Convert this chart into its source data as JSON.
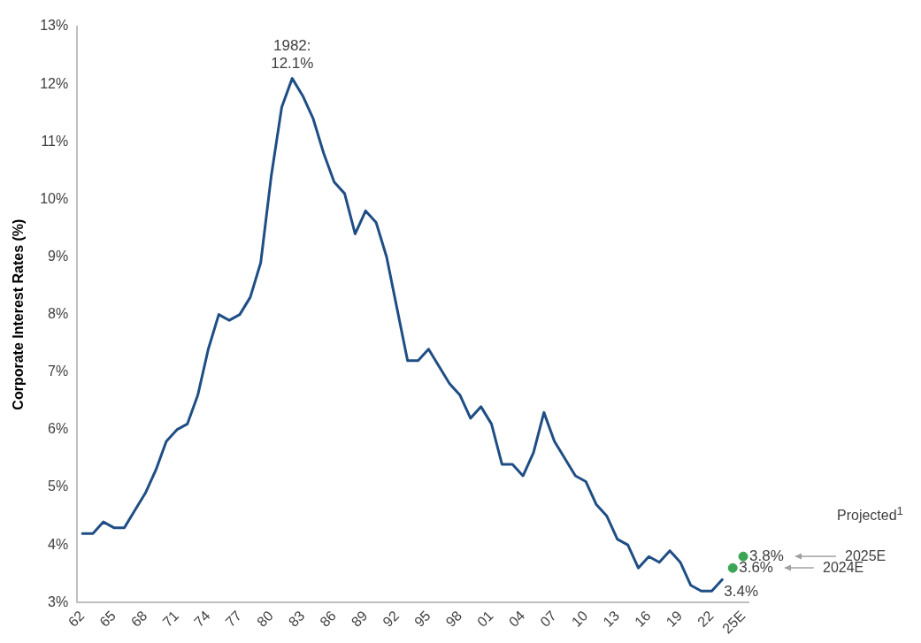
{
  "chart_data": {
    "type": "line",
    "ylabel": "Corporate Interest Rates (%)",
    "categories": [
      "62",
      null,
      null,
      "65",
      null,
      null,
      "68",
      null,
      null,
      "71",
      null,
      null,
      "74",
      null,
      null,
      "77",
      null,
      null,
      "80",
      null,
      null,
      "83",
      null,
      null,
      "86",
      null,
      null,
      "89",
      null,
      null,
      "92",
      null,
      null,
      "95",
      null,
      null,
      "98",
      null,
      null,
      "01",
      null,
      null,
      "04",
      null,
      null,
      "07",
      null,
      null,
      "10",
      null,
      null,
      "13",
      null,
      null,
      "16",
      null,
      null,
      "19",
      null,
      null,
      "22",
      null,
      null,
      "25E"
    ],
    "series": [
      {
        "marker": "none",
        "color": "#1f4e85",
        "values": [
          4.2,
          4.2,
          4.4,
          4.3,
          4.3,
          4.6,
          4.9,
          5.3,
          5.8,
          6.0,
          6.1,
          6.6,
          7.4,
          8.0,
          7.9,
          8.0,
          8.3,
          8.9,
          10.4,
          11.6,
          12.1,
          11.8,
          11.4,
          10.8,
          10.3,
          10.1,
          9.4,
          9.8,
          9.6,
          9.0,
          8.1,
          7.2,
          7.2,
          7.4,
          7.1,
          6.8,
          6.6,
          6.2,
          6.4,
          6.1,
          5.4,
          5.4,
          5.2,
          5.6,
          6.3,
          5.8,
          5.5,
          5.2,
          5.1,
          4.7,
          4.5,
          4.1,
          4.0,
          3.6,
          3.8,
          3.7,
          3.9,
          3.7,
          3.3,
          3.2,
          3.2,
          3.4,
          null,
          null
        ],
        "value_labels": [
          null,
          null,
          null,
          null,
          null,
          null,
          null,
          null,
          null,
          null,
          null,
          null,
          null,
          null,
          null,
          null,
          null,
          null,
          null,
          null,
          "1982:\n12.1%",
          null,
          null,
          null,
          null,
          null,
          null,
          null,
          null,
          null,
          null,
          null,
          null,
          null,
          null,
          null,
          null,
          null,
          null,
          null,
          null,
          null,
          null,
          null,
          null,
          null,
          null,
          null,
          null,
          null,
          null,
          null,
          null,
          null,
          null,
          null,
          null,
          null,
          null,
          null,
          null,
          "3.4%",
          null,
          null
        ]
      },
      {
        "type": "scatter",
        "marker": "circle",
        "color": "#3aa655",
        "values": [
          null,
          null,
          null,
          null,
          null,
          null,
          null,
          null,
          null,
          null,
          null,
          null,
          null,
          null,
          null,
          null,
          null,
          null,
          null,
          null,
          null,
          null,
          null,
          null,
          null,
          null,
          null,
          null,
          null,
          null,
          null,
          null,
          null,
          null,
          null,
          null,
          null,
          null,
          null,
          null,
          null,
          null,
          null,
          null,
          null,
          null,
          null,
          null,
          null,
          null,
          null,
          null,
          null,
          null,
          null,
          null,
          null,
          null,
          null,
          null,
          null,
          null,
          3.6,
          3.8
        ],
        "value_labels": [
          null,
          null,
          null,
          null,
          null,
          null,
          null,
          null,
          null,
          null,
          null,
          null,
          null,
          null,
          null,
          null,
          null,
          null,
          null,
          null,
          null,
          null,
          null,
          null,
          null,
          null,
          null,
          null,
          null,
          null,
          null,
          null,
          null,
          null,
          null,
          null,
          null,
          null,
          null,
          null,
          null,
          null,
          null,
          null,
          null,
          null,
          null,
          null,
          null,
          null,
          null,
          null,
          null,
          null,
          null,
          null,
          null,
          null,
          null,
          null,
          null,
          null,
          "3.6%",
          "3.8%"
        ]
      }
    ],
    "ylim": [
      3,
      13
    ],
    "yticks": [
      {
        "value": 3,
        "label": "3%"
      },
      {
        "value": 4,
        "label": "4%"
      },
      {
        "value": 5,
        "label": "5%"
      },
      {
        "value": 6,
        "label": "6%"
      },
      {
        "value": 7,
        "label": "7%"
      },
      {
        "value": 8,
        "label": "8%"
      },
      {
        "value": 9,
        "label": "9%"
      },
      {
        "value": 10,
        "label": "10%"
      },
      {
        "value": 11,
        "label": "11%"
      },
      {
        "value": 12,
        "label": "12%"
      },
      {
        "value": 13,
        "label": "13%"
      }
    ],
    "grid": false,
    "legend": false,
    "line_style": "solid",
    "annotations": [
      "Projected$^{1}$",
      "2025E",
      "2024E"
    ]
  }
}
